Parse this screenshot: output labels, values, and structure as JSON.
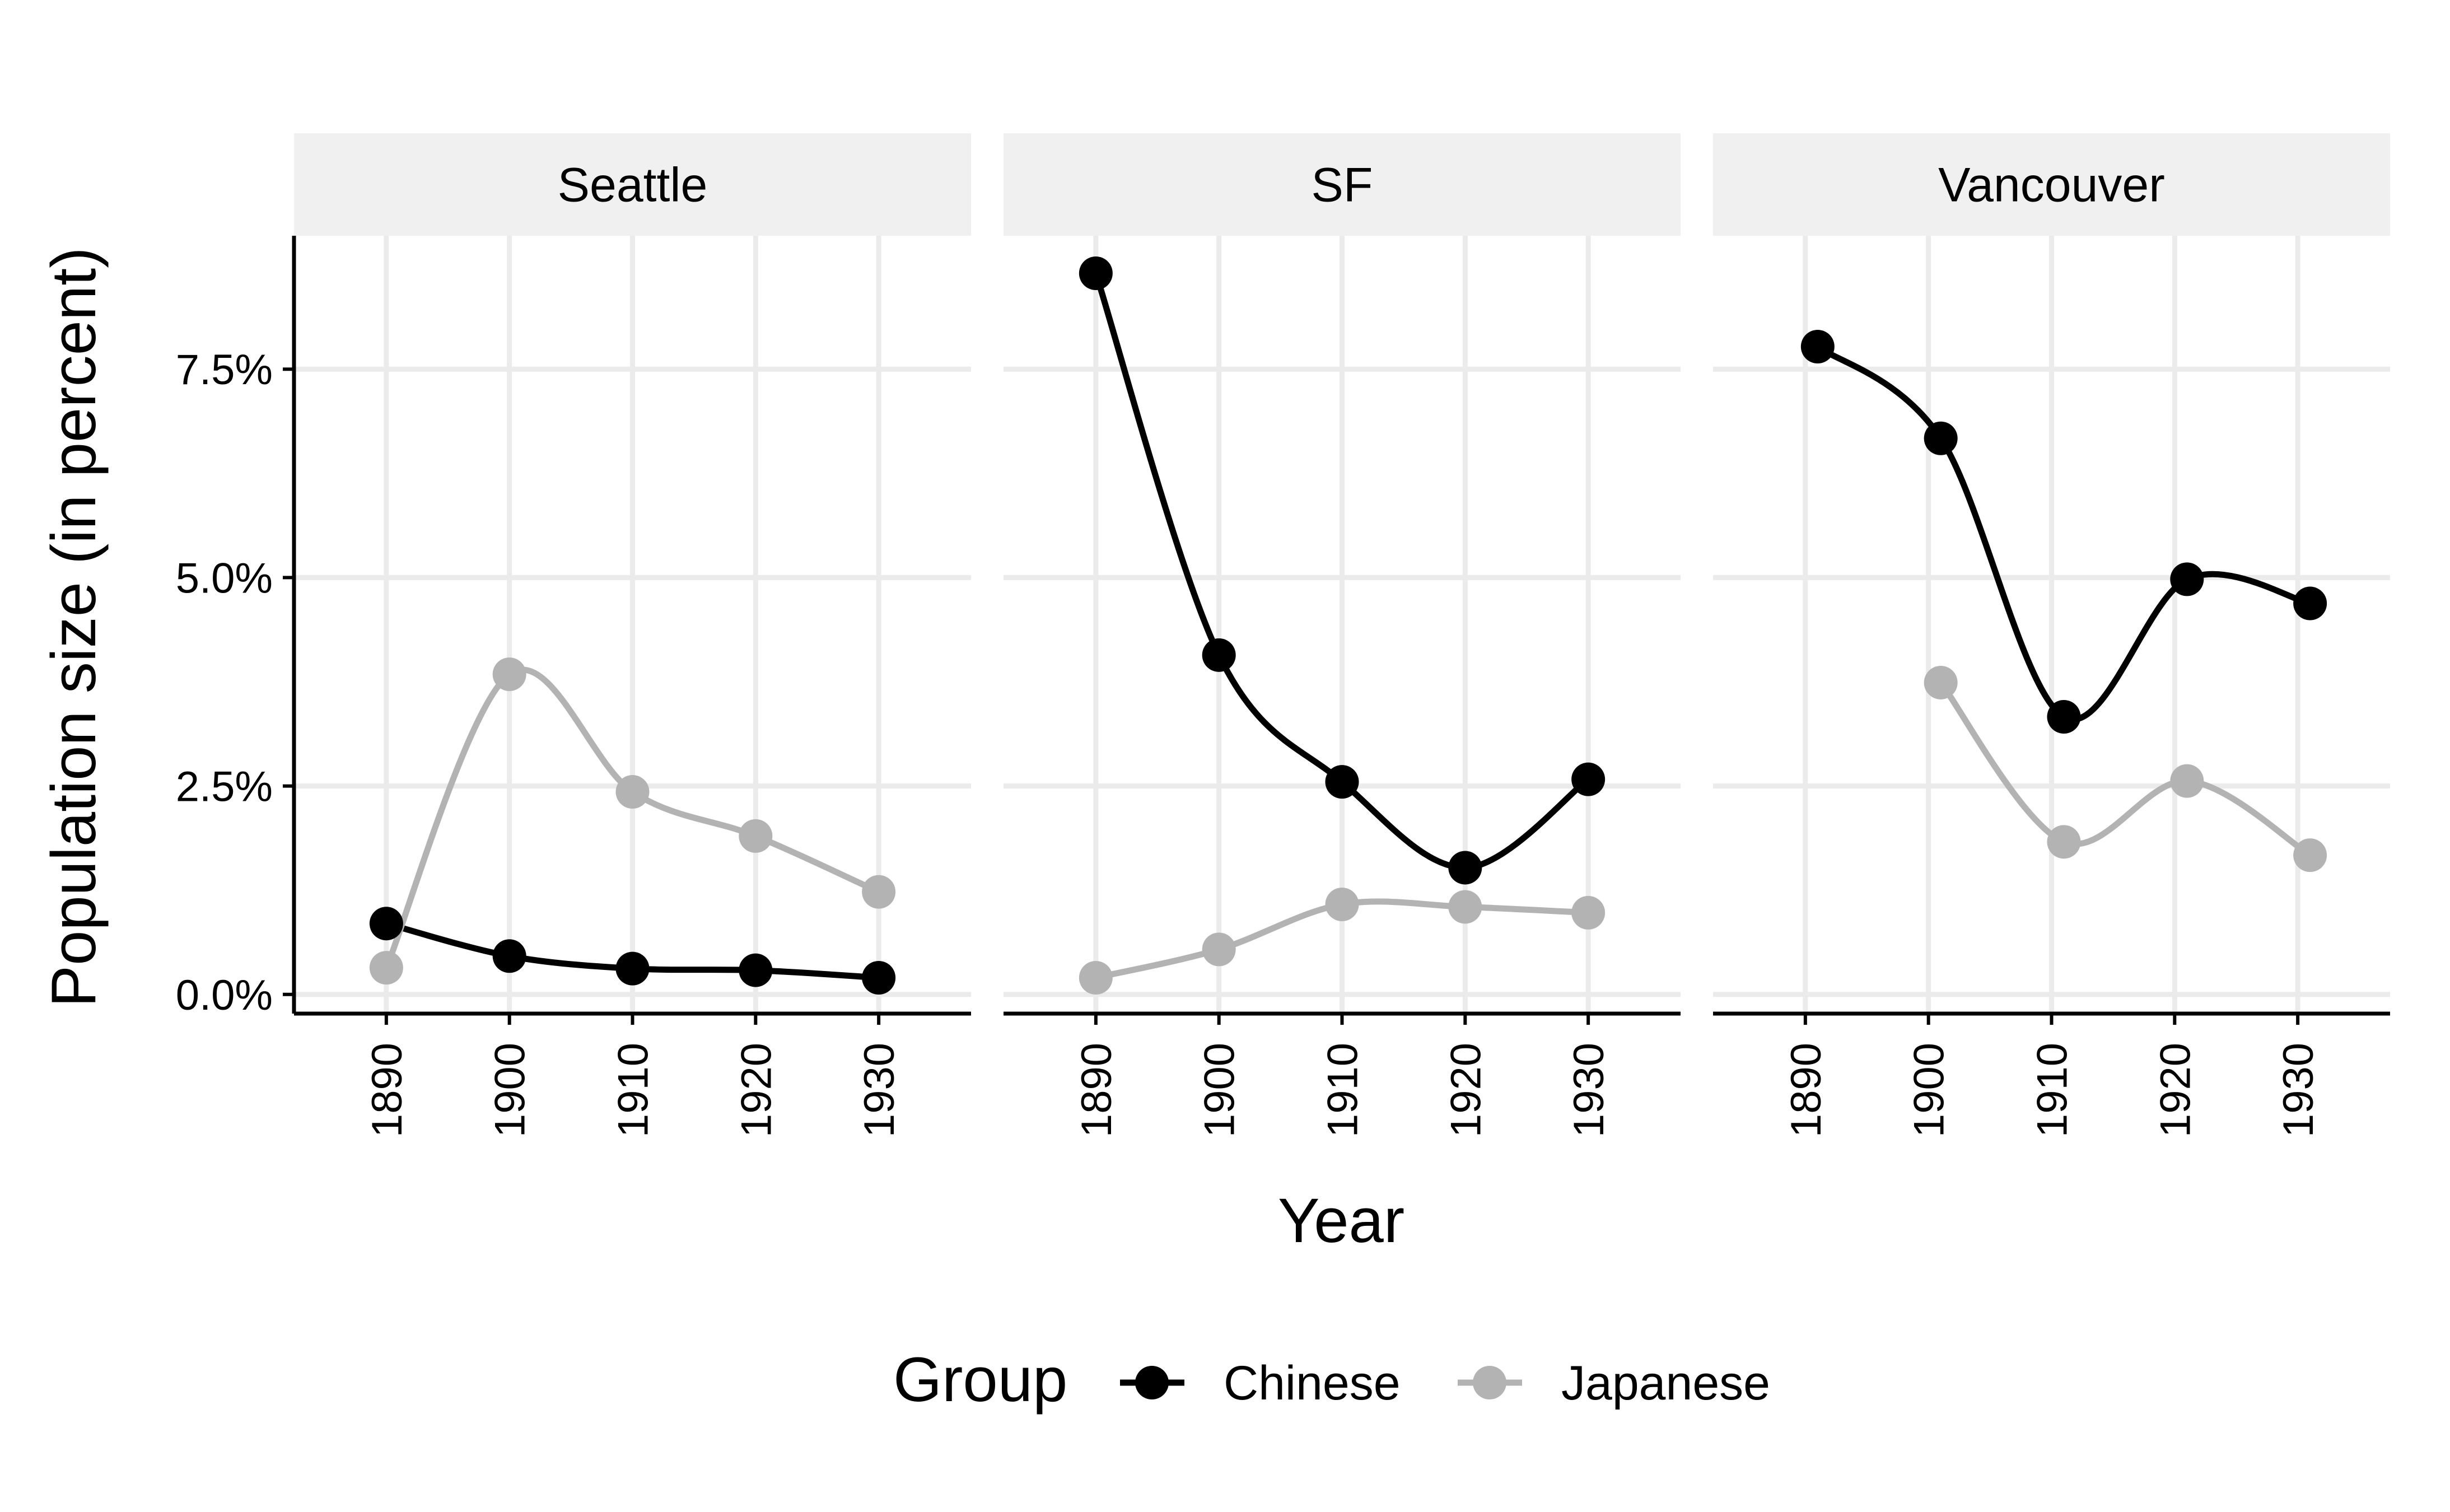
{
  "chart_data": {
    "type": "line",
    "facet_label": "",
    "xlabel": "Year",
    "ylabel": "Population size (in percent)",
    "x_ticks": [
      "1890",
      "1900",
      "1910",
      "1920",
      "1930"
    ],
    "y_ticks": [
      "0.0%",
      "2.5%",
      "5.0%",
      "7.5%"
    ],
    "y_tick_values": [
      0,
      2.5,
      5.0,
      7.5
    ],
    "xlim": [
      1882.5,
      1937.5
    ],
    "ylim": [
      -0.23,
      9.1
    ],
    "grid": true,
    "smoothed": true,
    "legend": {
      "title": "Group",
      "position": "bottom",
      "entries": [
        {
          "name": "Chinese",
          "color": "#000000"
        },
        {
          "name": "Japanese",
          "color": "#b3b3b3"
        }
      ]
    },
    "panels": [
      {
        "name": "Seattle",
        "series": [
          {
            "name": "Chinese",
            "color": "#000000",
            "x": [
              1890,
              1900,
              1910,
              1920,
              1930
            ],
            "values": [
              0.85,
              0.46,
              0.31,
              0.29,
              0.2
            ]
          },
          {
            "name": "Japanese",
            "color": "#b3b3b3",
            "x": [
              1890,
              1900,
              1910,
              1920,
              1930
            ],
            "values": [
              0.32,
              3.84,
              2.43,
              1.9,
              1.23
            ]
          }
        ]
      },
      {
        "name": "SF",
        "series": [
          {
            "name": "Chinese",
            "color": "#000000",
            "x": [
              1890,
              1900,
              1910,
              1920,
              1930
            ],
            "values": [
              8.65,
              4.07,
              2.55,
              1.52,
              2.58
            ]
          },
          {
            "name": "Japanese",
            "color": "#b3b3b3",
            "x": [
              1890,
              1900,
              1910,
              1920,
              1930
            ],
            "values": [
              0.2,
              0.54,
              1.08,
              1.05,
              0.98
            ]
          }
        ]
      },
      {
        "name": "Vancouver",
        "series": [
          {
            "name": "Chinese",
            "color": "#000000",
            "x": [
              1891,
              1901,
              1911,
              1921,
              1931
            ],
            "values": [
              7.77,
              6.67,
              3.33,
              4.98,
              4.69
            ]
          },
          {
            "name": "Japanese",
            "color": "#b3b3b3",
            "x": [
              1901,
              1911,
              1921,
              1931
            ],
            "values": [
              3.74,
              1.83,
              2.56,
              1.67
            ]
          }
        ]
      }
    ]
  }
}
